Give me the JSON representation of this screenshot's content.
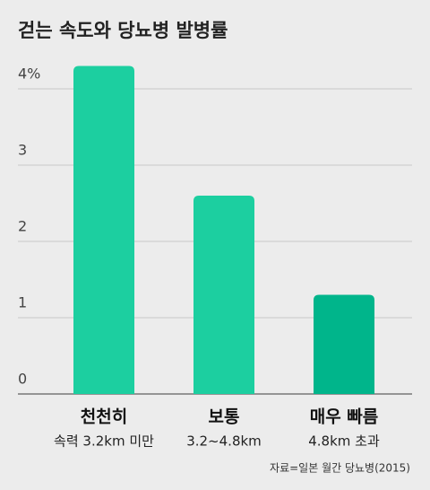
{
  "chart_data": {
    "type": "bar",
    "title": "걷는 속도와 당뇨병 발병률",
    "categories": [
      "천천히",
      "보통",
      "매우 빠름"
    ],
    "category_subtitles": [
      "속력 3.2km 미만",
      "3.2~4.8km",
      "4.8km 초과"
    ],
    "values": [
      4.3,
      2.6,
      1.3
    ],
    "colors": [
      "#1ccfa0",
      "#1ccfa0",
      "#00b58b"
    ],
    "ylim": [
      0,
      4.4
    ],
    "yticks": [
      0,
      1,
      2,
      3,
      {
        "value": 4,
        "label": "4%"
      }
    ],
    "grid": true,
    "source": "자료=일본 월간 당뇨병(2015)"
  }
}
